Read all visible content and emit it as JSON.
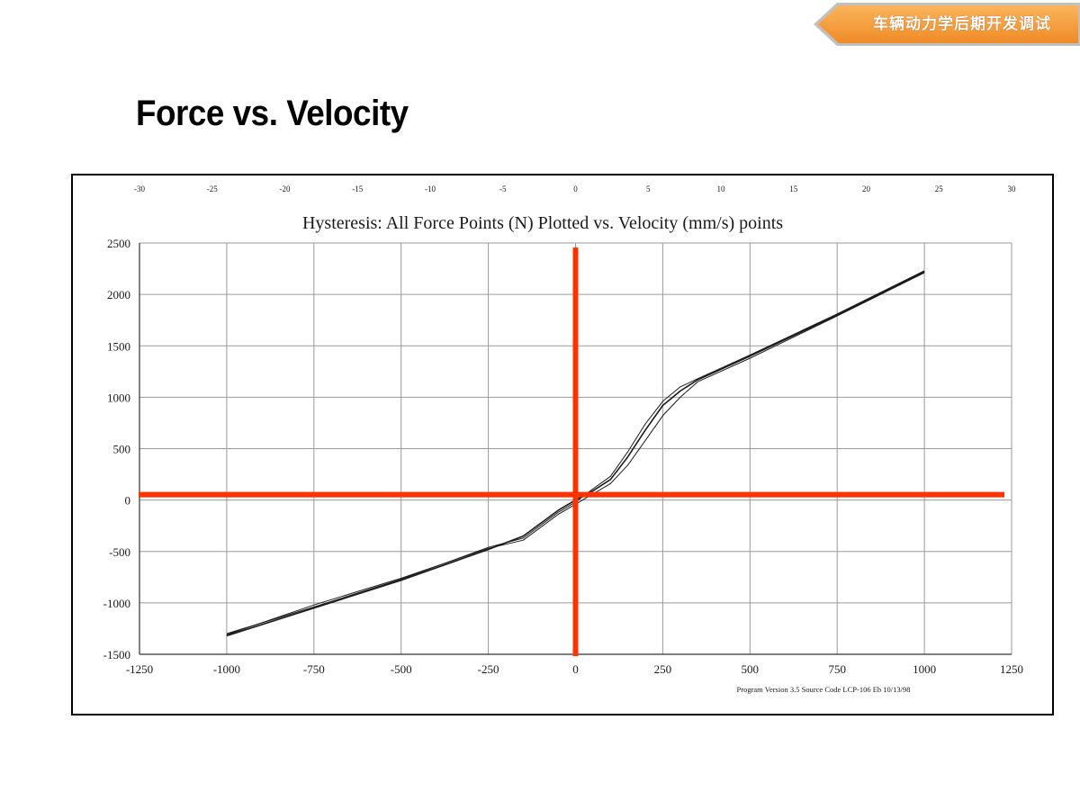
{
  "header": {
    "banner_text": "车辆动力学后期开发调试"
  },
  "slide": {
    "title": "Force vs. Velocity"
  },
  "colors": {
    "banner_orange": "#f59a3a",
    "crosshair_red": "#ff3300",
    "curve": "#1a1a1a",
    "grid": "#9a9a9a"
  },
  "chart_data": {
    "type": "line",
    "title": "Hysteresis:   All Force Points (N)  Plotted vs. Velocity (mm/s) points",
    "footnote": "Program Version 3.5  Source Code LCP-106 Eb     10/13/98",
    "x_ticks": [
      "-1250",
      "-1000",
      "-750",
      "-500",
      "-250",
      "0",
      "250",
      "500",
      "750",
      "1000",
      "1250"
    ],
    "x_tick_values": [
      -1250,
      -1000,
      -750,
      -500,
      -250,
      0,
      250,
      500,
      750,
      1000,
      1250
    ],
    "top_ticks": [
      "-30",
      "-25",
      "-20",
      "-15",
      "-10",
      "-5",
      "0",
      "5",
      "10",
      "15",
      "20",
      "25",
      "30"
    ],
    "top_tick_values": [
      -30,
      -25,
      -20,
      -15,
      -10,
      -5,
      0,
      5,
      10,
      15,
      20,
      25,
      30
    ],
    "y_ticks": [
      "2500",
      "2000",
      "1500",
      "1000",
      "500",
      "0",
      "-500",
      "-1000",
      "-1500"
    ],
    "y_tick_values": [
      2500,
      2000,
      1500,
      1000,
      500,
      0,
      -500,
      -1000,
      -1500
    ],
    "xlim": [
      -1250,
      1250
    ],
    "ylim": [
      -1500,
      2500
    ],
    "top_xlim": [
      -30,
      30
    ],
    "grid": true,
    "series": [
      {
        "x": [
          -1000,
          -750,
          -500,
          -250,
          -150,
          -50,
          0,
          50,
          100,
          150,
          200,
          250,
          300,
          350,
          500,
          750,
          1000
        ],
        "y": [
          -1320,
          -1050,
          -780,
          -480,
          -350,
          -100,
          0,
          90,
          200,
          420,
          680,
          920,
          1060,
          1170,
          1400,
          1800,
          2220
        ]
      },
      {
        "x": [
          -1000,
          -750,
          -500,
          -250,
          -150,
          -50,
          0,
          50,
          100,
          150,
          200,
          250,
          300,
          350,
          500,
          750,
          1000
        ],
        "y": [
          -1310,
          -1020,
          -760,
          -470,
          -390,
          -140,
          -40,
          60,
          160,
          340,
          580,
          820,
          1000,
          1150,
          1380,
          1790,
          2210
        ]
      },
      {
        "x": [
          -1000,
          -750,
          -500,
          -250,
          -150,
          -50,
          0,
          50,
          100,
          150,
          200,
          250,
          300,
          350,
          500,
          750,
          1000
        ],
        "y": [
          -1300,
          -1040,
          -770,
          -460,
          -370,
          -120,
          -20,
          110,
          230,
          470,
          740,
          960,
          1100,
          1180,
          1410,
          1810,
          2230
        ]
      }
    ],
    "crosshair": {
      "x": 0,
      "y": 0
    }
  }
}
